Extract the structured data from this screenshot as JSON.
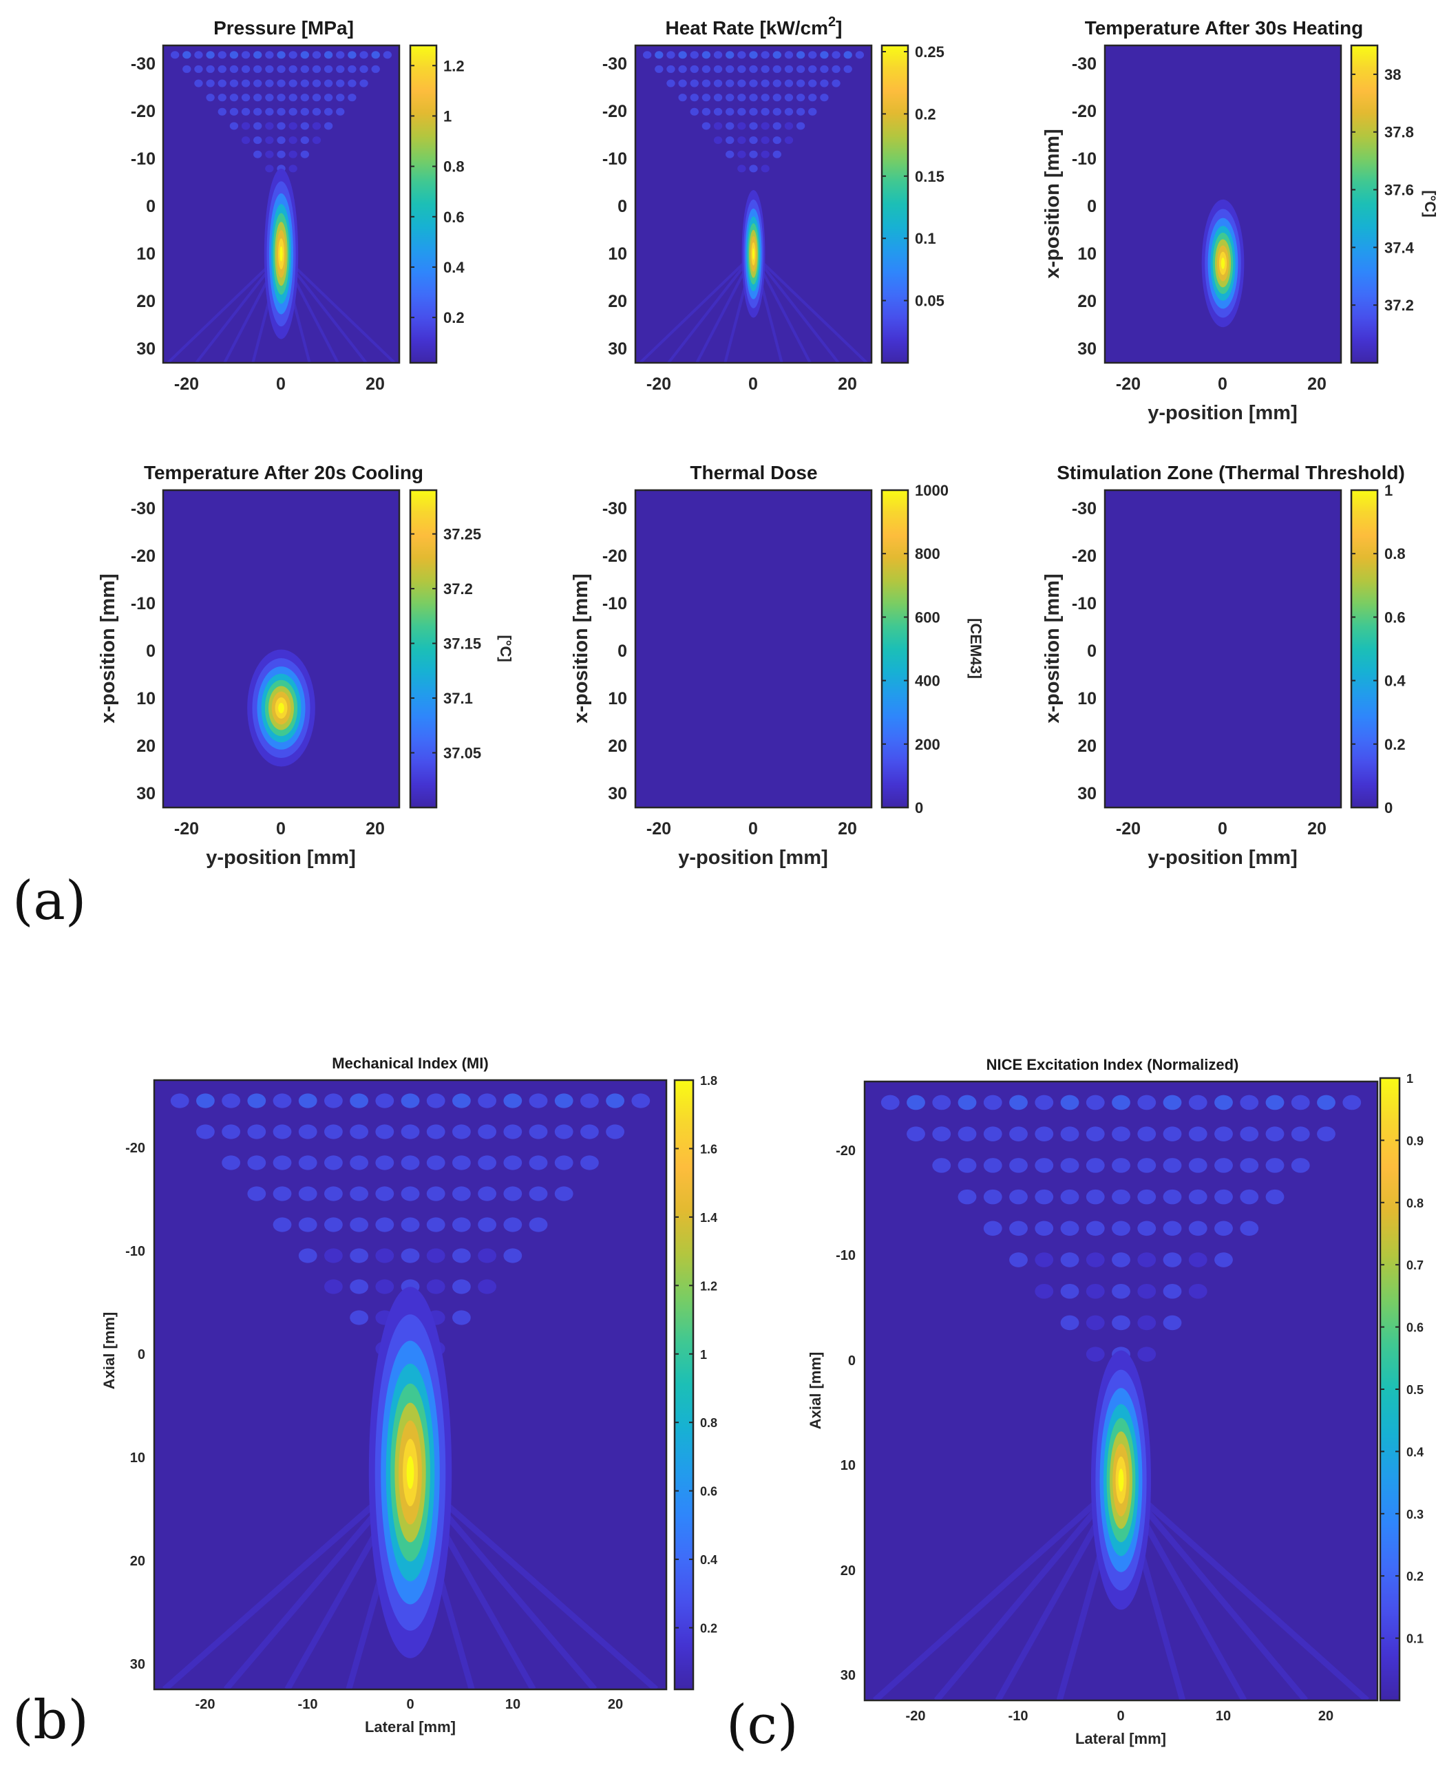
{
  "panel_labels": [
    "(a)",
    "(b)",
    "(c)"
  ],
  "colors": {
    "parula": [
      "#3e26a8",
      "#4433d1",
      "#4750ec",
      "#3f6cf9",
      "#2f86fb",
      "#229cec",
      "#17b1d3",
      "#1cbfb6",
      "#40c892",
      "#7acd63",
      "#b3c63f",
      "#e2ba31",
      "#fdbd3d",
      "#f8d62e",
      "#f9fb15"
    ],
    "axis": "#262626",
    "background": "#ffffff"
  },
  "chart_data": [
    {
      "id": "a1",
      "type": "heatmap",
      "title": "Pressure [MPa]",
      "xlabel": "",
      "ylabel": "",
      "xlim": [
        -25,
        25
      ],
      "ylim": [
        -34,
        33
      ],
      "xticks": [
        "-20",
        "0",
        "20"
      ],
      "yticks": [
        "-30",
        "-20",
        "-10",
        "0",
        "10",
        "20",
        "30"
      ],
      "colorbar": {
        "label": "",
        "range": [
          0.02,
          1.28
        ],
        "ticks": [
          "0.2",
          "0.4",
          "0.6",
          "0.8",
          "1",
          "1.2"
        ]
      },
      "field": {
        "kind": "focused_beam",
        "focus_center": [
          0,
          10
        ],
        "focus_width_sd": 1.6,
        "focus_length_sd": 8,
        "peak": 1.28,
        "interference": true
      }
    },
    {
      "id": "a2",
      "type": "heatmap",
      "title": "Heat Rate [kW/cm",
      "title_sup": "2",
      "title_end": "]",
      "xlabel": "",
      "ylabel": "",
      "xlim": [
        -25,
        25
      ],
      "ylim": [
        -34,
        33
      ],
      "xticks": [
        "-20",
        "0",
        "20"
      ],
      "yticks": [
        "-30",
        "-20",
        "-10",
        "0",
        "10",
        "20",
        "30"
      ],
      "colorbar": {
        "label": "",
        "range": [
          0.0,
          0.255
        ],
        "ticks": [
          "0.05",
          "0.1",
          "0.15",
          "0.2",
          "0.25"
        ]
      },
      "field": {
        "kind": "focused_beam",
        "focus_center": [
          0,
          10
        ],
        "focus_width_sd": 1.1,
        "focus_length_sd": 6,
        "peak": 0.25,
        "interference": true
      }
    },
    {
      "id": "a3",
      "type": "heatmap",
      "title": "Temperature After 30s Heating",
      "xlabel": "y-position [mm]",
      "ylabel": "x-position [mm]",
      "xlim": [
        -25,
        25
      ],
      "ylim": [
        -34,
        33
      ],
      "xticks": [
        "-20",
        "0",
        "20"
      ],
      "yticks": [
        "-30",
        "-20",
        "-10",
        "0",
        "10",
        "20",
        "30"
      ],
      "colorbar": {
        "label": "[°C]",
        "range": [
          37.0,
          38.1
        ],
        "ticks": [
          "37.2",
          "37.4",
          "37.6",
          "37.8",
          "38"
        ]
      },
      "field": {
        "kind": "focused_beam",
        "focus_center": [
          0,
          12
        ],
        "focus_width_sd": 2.0,
        "focus_length_sd": 6,
        "peak": 38.1,
        "interference": false
      }
    },
    {
      "id": "a4",
      "type": "heatmap",
      "title": "Temperature After 20s Cooling",
      "xlabel": "y-position [mm]",
      "ylabel": "x-position [mm]",
      "xlim": [
        -25,
        25
      ],
      "ylim": [
        -34,
        33
      ],
      "xticks": [
        "-20",
        "0",
        "20"
      ],
      "yticks": [
        "-30",
        "-20",
        "-10",
        "0",
        "10",
        "20",
        "30"
      ],
      "colorbar": {
        "label": "[°C]",
        "range": [
          37.0,
          37.29
        ],
        "ticks": [
          "37.05",
          "37.1",
          "37.15",
          "37.2",
          "37.25"
        ]
      },
      "field": {
        "kind": "blob",
        "focus_center": [
          0,
          12
        ],
        "focus_width_sd": 3.2,
        "focus_length_sd": 5.5,
        "peak": 37.29,
        "interference": false
      }
    },
    {
      "id": "a5",
      "type": "heatmap",
      "title": "Thermal Dose",
      "xlabel": "y-position [mm]",
      "ylabel": "x-position [mm]",
      "xlim": [
        -25,
        25
      ],
      "ylim": [
        -34,
        33
      ],
      "xticks": [
        "-20",
        "0",
        "20"
      ],
      "yticks": [
        "-30",
        "-20",
        "-10",
        "0",
        "10",
        "20",
        "30"
      ],
      "colorbar": {
        "label": "[CEM43]",
        "range": [
          0,
          1000
        ],
        "ticks": [
          "0",
          "200",
          "400",
          "600",
          "800",
          "1000"
        ]
      },
      "field": {
        "kind": "uniform",
        "value": 0
      }
    },
    {
      "id": "a6",
      "type": "heatmap",
      "title": "Stimulation Zone (Thermal Threshold)",
      "xlabel": "y-position [mm]",
      "ylabel": "x-position [mm]",
      "xlim": [
        -25,
        25
      ],
      "ylim": [
        -34,
        33
      ],
      "xticks": [
        "-20",
        "0",
        "20"
      ],
      "yticks": [
        "-30",
        "-20",
        "-10",
        "0",
        "10",
        "20",
        "30"
      ],
      "colorbar": {
        "label": "",
        "range": [
          0,
          1
        ],
        "ticks": [
          "0",
          "0.2",
          "0.4",
          "0.6",
          "0.8",
          "1"
        ]
      },
      "field": {
        "kind": "uniform",
        "value": 0
      }
    },
    {
      "id": "b",
      "type": "heatmap",
      "title": "Mechanical Index (MI)",
      "xlabel": "Lateral [mm]",
      "ylabel": "Axial [mm]",
      "xlim": [
        -25,
        25
      ],
      "ylim": [
        -26,
        33
      ],
      "xticks": [
        "-20",
        "-10",
        "0",
        "10",
        "20"
      ],
      "yticks": [
        "-20",
        "-10",
        "0",
        "10",
        "20",
        "30"
      ],
      "colorbar": {
        "label": "",
        "range": [
          0.02,
          1.8
        ],
        "ticks": [
          "0.2",
          "0.4",
          "0.6",
          "0.8",
          "1",
          "1.2",
          "1.4",
          "1.6",
          "1.8"
        ]
      },
      "field": {
        "kind": "focused_beam",
        "focus_center": [
          0,
          12
        ],
        "focus_width_sd": 1.8,
        "focus_length_sd": 8,
        "peak": 1.75,
        "interference": true
      }
    },
    {
      "id": "c",
      "type": "heatmap",
      "title": "NICE Excitation Index (Normalized)",
      "xlabel": "Lateral [mm]",
      "ylabel": "Axial [mm]",
      "xlim": [
        -25,
        25
      ],
      "ylim": [
        -26,
        33
      ],
      "xticks": [
        "-20",
        "-10",
        "0",
        "10",
        "20"
      ],
      "yticks": [
        "-20",
        "-10",
        "0",
        "10",
        "20",
        "30"
      ],
      "colorbar": {
        "label": "",
        "range": [
          0.0,
          1.0
        ],
        "ticks": [
          "0.1",
          "0.2",
          "0.3",
          "0.4",
          "0.5",
          "0.6",
          "0.7",
          "0.8",
          "0.9",
          "1"
        ]
      },
      "field": {
        "kind": "focused_beam",
        "focus_center": [
          0,
          12
        ],
        "focus_width_sd": 1.3,
        "focus_length_sd": 5.5,
        "peak": 1.0,
        "interference": true
      }
    }
  ]
}
